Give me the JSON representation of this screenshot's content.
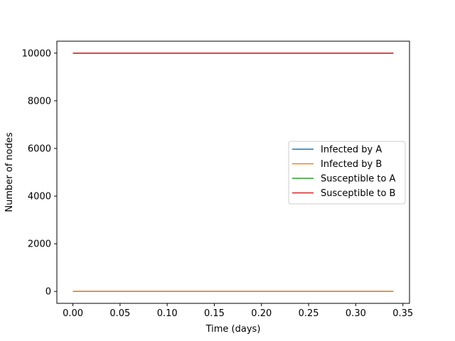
{
  "chart_data": {
    "type": "line",
    "title": "",
    "xlabel": "Time (days)",
    "ylabel": "Number of nodes",
    "xlim": [
      -0.017,
      0.357
    ],
    "ylim": [
      -500,
      10500
    ],
    "x_ticks": [
      0.0,
      0.05,
      0.1,
      0.15,
      0.2,
      0.25,
      0.3,
      0.35
    ],
    "x_tick_labels": [
      "0.00",
      "0.05",
      "0.10",
      "0.15",
      "0.20",
      "0.25",
      "0.30",
      "0.35"
    ],
    "y_ticks": [
      0,
      2000,
      4000,
      6000,
      8000,
      10000
    ],
    "y_tick_labels": [
      "0",
      "2000",
      "4000",
      "6000",
      "8000",
      "10000"
    ],
    "grid": false,
    "legend_position": "center-right",
    "x": [
      0.0,
      0.34
    ],
    "series": [
      {
        "name": "Infected by A",
        "color": "#1f77b4",
        "values": [
          1,
          1
        ]
      },
      {
        "name": "Infected by B",
        "color": "#ff7f0e",
        "values": [
          1,
          1
        ]
      },
      {
        "name": "Susceptible to A",
        "color": "#2ca02c",
        "values": [
          9999,
          9999
        ]
      },
      {
        "name": "Susceptible to B",
        "color": "#d62728",
        "values": [
          9999,
          9999
        ]
      }
    ]
  }
}
